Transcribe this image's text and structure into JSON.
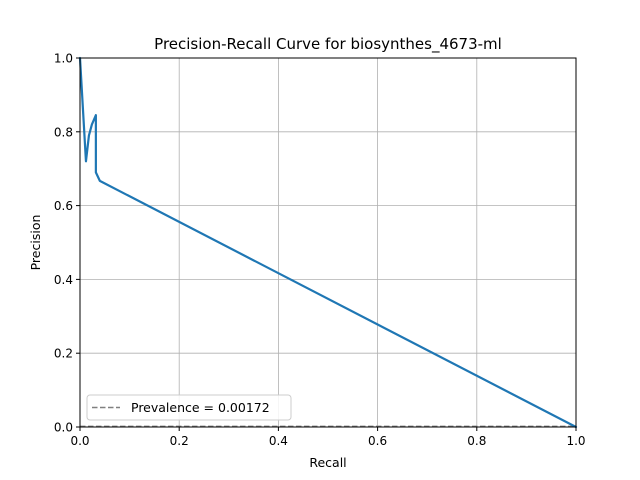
{
  "chart_data": {
    "type": "line",
    "title": "Precision-Recall Curve for biosynthes_4673-ml",
    "xlabel": "Recall",
    "ylabel": "Precision",
    "xlim": [
      0.0,
      1.0
    ],
    "ylim": [
      0.0,
      1.0
    ],
    "x_ticks": [
      "0.0",
      "0.2",
      "0.4",
      "0.6",
      "0.8",
      "1.0"
    ],
    "y_ticks": [
      "0.0",
      "0.2",
      "0.4",
      "0.6",
      "0.8",
      "1.0"
    ],
    "grid": true,
    "legend_position": "lower-left",
    "colors": {
      "curve": "#1f77b4",
      "prevalence": "#808080",
      "grid": "#b0b0b0"
    },
    "series": [
      {
        "x": [
          0.0,
          0.012,
          0.018,
          0.024,
          0.032,
          0.032,
          0.04,
          1.0
        ],
        "y": [
          1.0,
          0.72,
          0.79,
          0.82,
          0.845,
          0.69,
          0.667,
          0.0
        ]
      }
    ],
    "baseline": {
      "name": "Prevalence = 0.00172",
      "y": 0.00172,
      "style": "dashed"
    }
  }
}
